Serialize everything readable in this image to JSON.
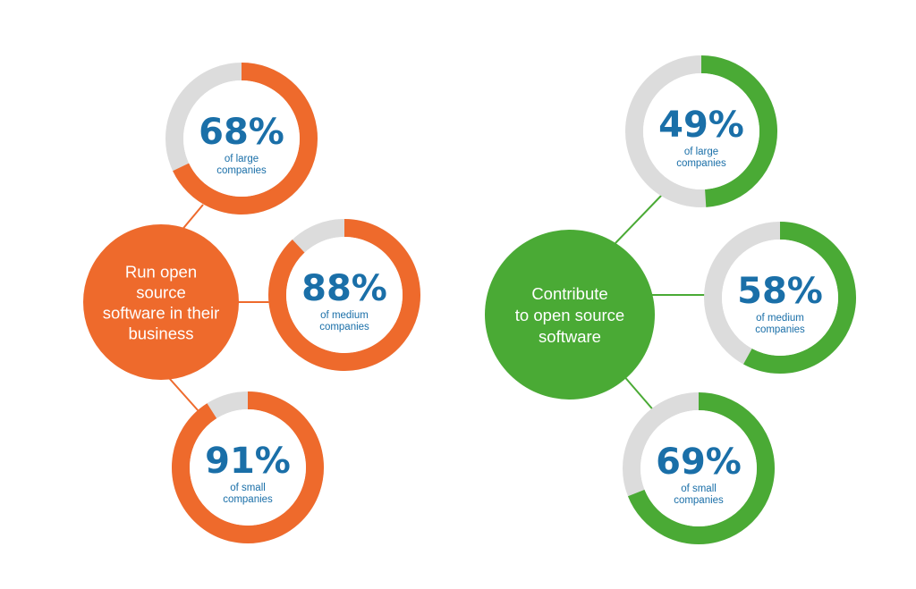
{
  "colors": {
    "orange": "#ee6a2c",
    "green": "#4aaa35",
    "track": "#dcdcdc",
    "value_text": "#1a6fa8",
    "white": "#ffffff"
  },
  "chart_data": [
    {
      "type": "donut",
      "title": "Run open source software in their business",
      "title_lines": [
        "Run open",
        "source",
        "software in their",
        "business"
      ],
      "color": "#ee6a2c",
      "series": [
        {
          "name": "of large companies",
          "label_lines": [
            "of large",
            "companies"
          ],
          "value": 68,
          "display": "68%"
        },
        {
          "name": "of medium companies",
          "label_lines": [
            "of medium",
            "companies"
          ],
          "value": 88,
          "display": "88%"
        },
        {
          "name": "of small companies",
          "label_lines": [
            "of small",
            "companies"
          ],
          "value": 91,
          "display": "91%"
        }
      ]
    },
    {
      "type": "donut",
      "title": "Contribute to open source software",
      "title_lines": [
        "Contribute",
        "to open source",
        "software"
      ],
      "color": "#4aaa35",
      "series": [
        {
          "name": "of large companies",
          "label_lines": [
            "of large",
            "companies"
          ],
          "value": 49,
          "display": "49%"
        },
        {
          "name": "of medium companies",
          "label_lines": [
            "of medium",
            "companies"
          ],
          "value": 58,
          "display": "58%"
        },
        {
          "name": "of small companies",
          "label_lines": [
            "of small",
            "companies"
          ],
          "value": 69,
          "display": "69%"
        }
      ]
    }
  ]
}
